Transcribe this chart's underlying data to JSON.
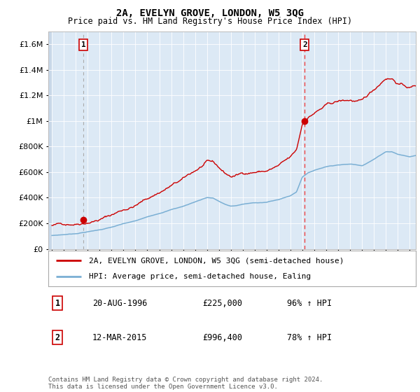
{
  "title": "2A, EVELYN GROVE, LONDON, W5 3QG",
  "subtitle": "Price paid vs. HM Land Registry's House Price Index (HPI)",
  "hpi_label": "HPI: Average price, semi-detached house, Ealing",
  "property_label": "2A, EVELYN GROVE, LONDON, W5 3QG (semi-detached house)",
  "footnote": "Contains HM Land Registry data © Crown copyright and database right 2024.\nThis data is licensed under the Open Government Licence v3.0.",
  "sale1": {
    "date": "20-AUG-1996",
    "price": 225000,
    "hpi_pct": "96% ↑ HPI",
    "year": 1996.63
  },
  "sale2": {
    "date": "12-MAR-2015",
    "price": 996400,
    "hpi_pct": "78% ↑ HPI",
    "year": 2015.19
  },
  "ylim": [
    0,
    1700000
  ],
  "xlim_start": 1993.7,
  "xlim_end": 2024.5,
  "background_color": "#dce9f5",
  "plot_bg": "#dce9f5",
  "red_line_color": "#cc0000",
  "blue_line_color": "#7aafd4",
  "sale1_dashed_color": "#aaaaaa",
  "sale2_dashed_color": "#ee4444",
  "sale1_marker_x": 1996.63,
  "sale1_marker_y": 225000,
  "sale2_marker_x": 2015.19,
  "sale2_marker_y": 996400,
  "hpi_keypoints_x": [
    1994,
    1995,
    1996,
    1997,
    1998,
    1999,
    2000,
    2001,
    2002,
    2003,
    2004,
    2005,
    2006,
    2007,
    2007.5,
    2008,
    2008.5,
    2009,
    2009.5,
    2010,
    2011,
    2012,
    2013,
    2014,
    2014.5,
    2015,
    2015.5,
    2016,
    2017,
    2018,
    2019,
    2020,
    2021,
    2022,
    2022.5,
    2023,
    2024,
    2024.5
  ],
  "hpi_keypoints_y": [
    105000,
    112000,
    120000,
    135000,
    150000,
    170000,
    195000,
    215000,
    245000,
    275000,
    305000,
    330000,
    365000,
    400000,
    395000,
    370000,
    345000,
    330000,
    335000,
    345000,
    355000,
    360000,
    380000,
    410000,
    440000,
    560000,
    590000,
    610000,
    640000,
    655000,
    660000,
    650000,
    700000,
    760000,
    760000,
    740000,
    720000,
    730000
  ]
}
